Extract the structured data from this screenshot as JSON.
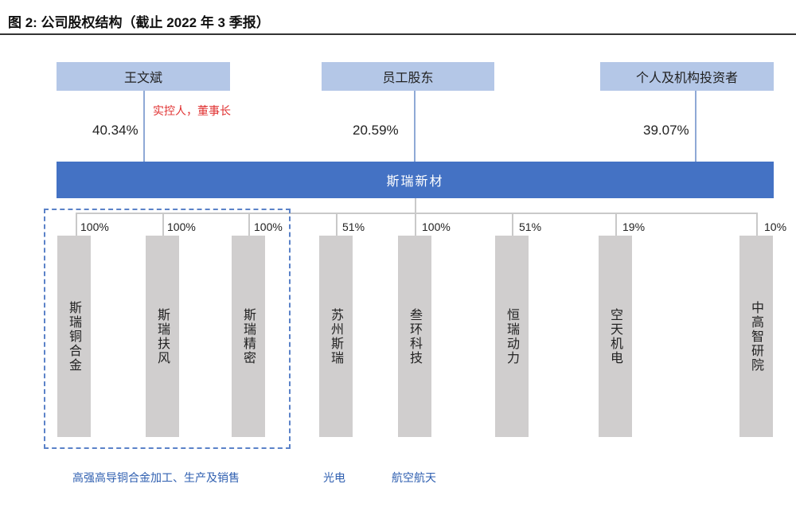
{
  "figure": {
    "title": "图 2:  公司股权结构（截止 2022 年 3 季报）"
  },
  "shareholders": [
    {
      "name": "王文斌",
      "percent": "40.34%"
    },
    {
      "name": "员工股东",
      "percent": "20.59%"
    },
    {
      "name": "个人及机构投资者",
      "percent": "39.07%"
    }
  ],
  "controller_note": "实控人，董事长",
  "company": {
    "name": "斯瑞新材"
  },
  "subsidiaries": [
    {
      "name": "斯瑞铜合金",
      "percent": "100%"
    },
    {
      "name": "斯瑞扶风",
      "percent": "100%"
    },
    {
      "name": "斯瑞精密",
      "percent": "100%"
    },
    {
      "name": "苏州斯瑞",
      "percent": "51%"
    },
    {
      "name": "叁环科技",
      "percent": "100%"
    },
    {
      "name": "恒瑞动力",
      "percent": "51%"
    },
    {
      "name": "空天机电",
      "percent": "19%"
    },
    {
      "name": "中高智研院",
      "percent": "10%"
    }
  ],
  "notes": {
    "group_business": "高强高导铜合金加工、生产及销售",
    "suzhou_business": "光电",
    "sanhuan_business": "航空航天"
  },
  "colors": {
    "holder_box": "#b4c7e7",
    "company_bar": "#4472c4",
    "subsidiary_box": "#d0cece",
    "controller_note": "#e03030",
    "business_note": "#2f5fb0",
    "dashed_border": "#5b82c8"
  }
}
